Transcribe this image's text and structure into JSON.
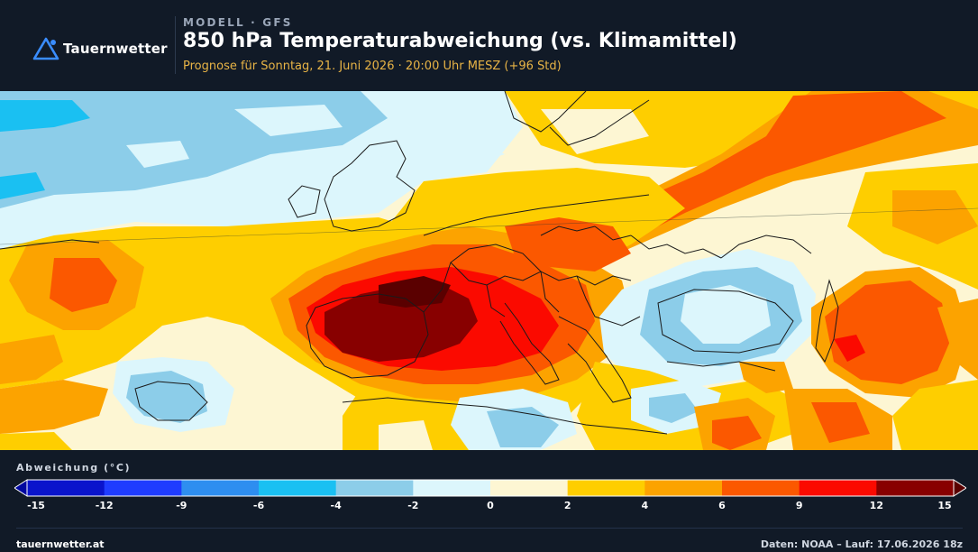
{
  "brand": {
    "name": "Tauernwetter",
    "website": "tauernwetter.at"
  },
  "header": {
    "kicker": "MODELL · GFS",
    "title": "850 hPa Temperaturabweichung (vs. Klimamittel)",
    "subtitle": "Prognose für Sonntag, 21. Juni 2026 · 20:00 Uhr MESZ  (+96 Std)"
  },
  "legend": {
    "title": "Abweichung (°C)",
    "ticks": [
      "-15",
      "-12",
      "-9",
      "-6",
      "-4",
      "-2",
      "0",
      "2",
      "4",
      "6",
      "9",
      "12",
      "15"
    ],
    "colors": [
      "#0a14cc",
      "#1f3cff",
      "#2e8ef0",
      "#1ac0f2",
      "#8ccde9",
      "#dcf6fc",
      "#fdf6d3",
      "#fece00",
      "#fca300",
      "#fb5800",
      "#fb0a00",
      "#880000"
    ]
  },
  "footer": {
    "credits": "Daten: NOAA – Lauf: 17.06.2026 18z"
  }
}
